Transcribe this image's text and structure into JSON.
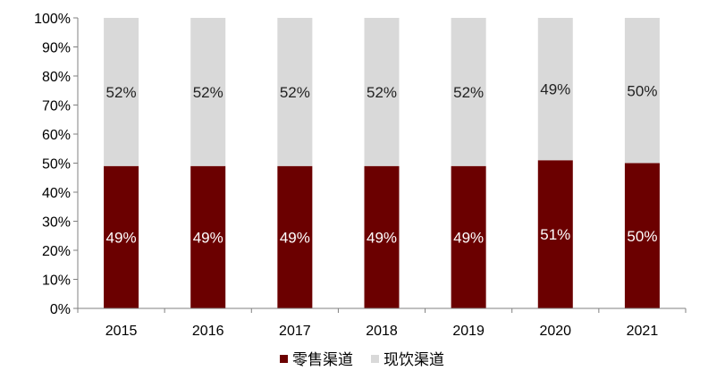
{
  "chart_data": {
    "type": "bar",
    "stacked": true,
    "categories": [
      "2015",
      "2016",
      "2017",
      "2018",
      "2019",
      "2020",
      "2021"
    ],
    "series": [
      {
        "name": "零售渠道",
        "values": [
          49,
          49,
          49,
          49,
          49,
          51,
          50
        ],
        "labels": [
          "49%",
          "49%",
          "49%",
          "49%",
          "49%",
          "51%",
          "50%"
        ],
        "color": "#6b0000"
      },
      {
        "name": "现饮渠道",
        "values": [
          52,
          52,
          52,
          52,
          52,
          49,
          50
        ],
        "labels": [
          "52%",
          "52%",
          "52%",
          "52%",
          "52%",
          "49%",
          "50%"
        ],
        "color": "#d9d9d9"
      }
    ],
    "yticks": [
      "0%",
      "10%",
      "20%",
      "30%",
      "40%",
      "50%",
      "60%",
      "70%",
      "80%",
      "90%",
      "100%"
    ],
    "ylim": [
      0,
      100
    ],
    "grid": false,
    "legend": "bottom-center"
  }
}
